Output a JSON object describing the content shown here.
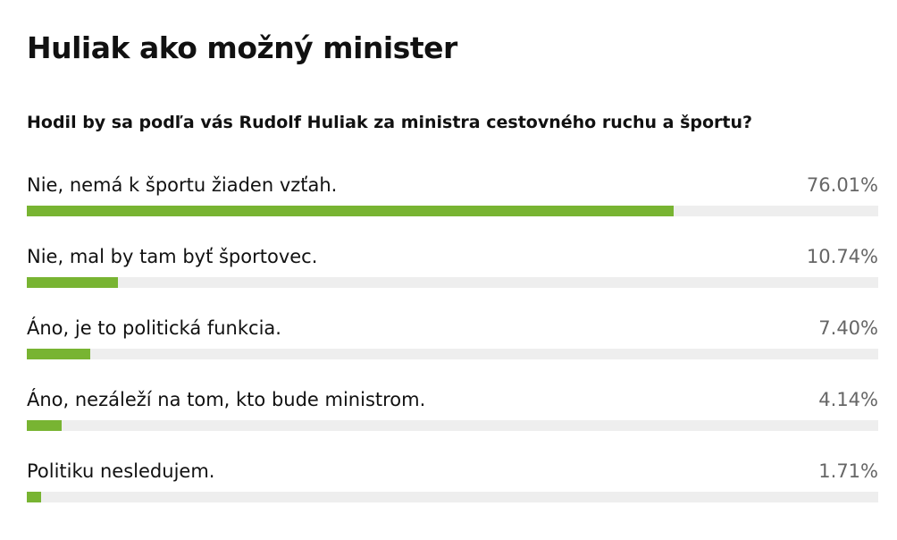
{
  "poll": {
    "title": "Huliak ako možný minister",
    "question": "Hodil by sa podľa vás Rudolf Huliak za ministra cestovného ruchu a športu?"
  },
  "colors": {
    "bar_fill": "#78b432",
    "bar_track": "#eeeeee",
    "percent_text": "#666666"
  },
  "chart_data": {
    "type": "bar",
    "orientation": "horizontal",
    "title": "Huliak ako možný minister",
    "subtitle": "Hodil by sa podľa vás Rudolf Huliak za ministra cestovného ruchu a športu?",
    "categories": [
      "Nie, nemá k športu žiaden vzťah.",
      "Nie, mal by tam byť športovec.",
      "Áno, je to politická funkcia.",
      "Áno, nezáleží na tom, kto bude ministrom.",
      "Politiku nesledujem."
    ],
    "values": [
      76.01,
      10.74,
      7.4,
      4.14,
      1.71
    ],
    "value_labels": [
      "76.01%",
      "10.74%",
      "7.40%",
      "4.14%",
      "1.71%"
    ],
    "xlim": [
      0,
      100
    ],
    "grid": false,
    "legend": "none"
  }
}
